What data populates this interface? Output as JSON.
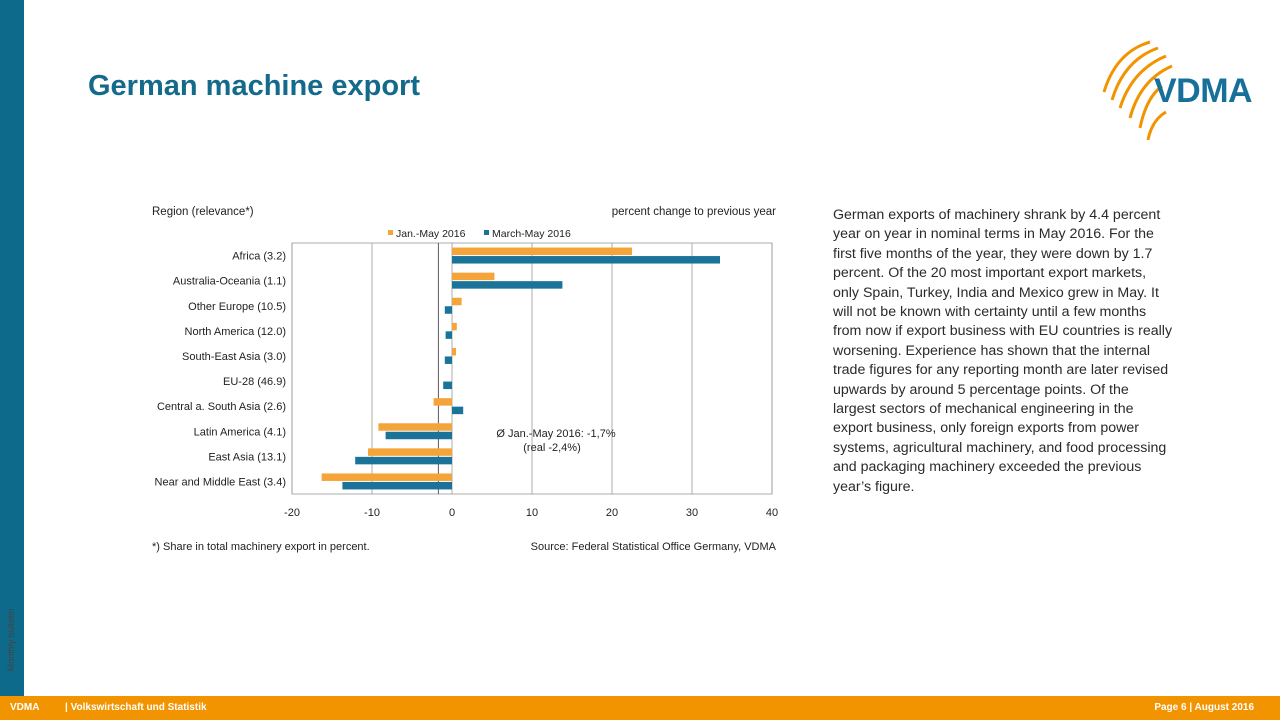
{
  "slide": {
    "title": "German machine export",
    "side_label": "Monthly bulletin",
    "logo_text": "VDMA",
    "body_text": "German exports of machinery shrank by 4.4 percent year on year in nominal terms in May 2016. For the first five months of the year, they were down by 1.7 percent. Of the 20 most important export markets, only Spain, Turkey, India and Mexico grew in May. It will not be known with certainty until a few months from now if export business with EU countries is really worsening. Experience has shown that the internal trade figures for any reporting month are later revised upwards by around 5 percentage points. Of the largest sectors of mechanical engineering in the export business, only foreign exports from power systems, agricultural machinery, and food processing and packaging machinery exceeded the previous year’s figure."
  },
  "footer": {
    "brand": "VDMA",
    "dept": "| Volkswirtschaft und Statistik",
    "page": "Page 6 | August 2016"
  },
  "colors": {
    "accent_blue": "#1b7399",
    "accent_orange": "#f5a43a",
    "footer_orange": "#f29300",
    "sidebar_blue": "#0e6a8a"
  },
  "chart_data": {
    "type": "bar",
    "orientation": "horizontal",
    "left_header": "Region (relevance*)",
    "right_header": "percent change to previous year",
    "categories": [
      "Africa  (3.2)",
      "Australia-Oceania  (1.1)",
      "Other Europe  (10.5)",
      "North America  (12.0)",
      "South-East Asia  (3.0)",
      "EU-28  (46.9)",
      "Central a. South Asia  (2.6)",
      "Latin America  (4.1)",
      "East Asia  (13.1)",
      "Near and Middle East  (3.4)"
    ],
    "series": [
      {
        "name": "Jan.-May 2016",
        "color": "#f5a43a",
        "values": [
          22.5,
          5.3,
          1.2,
          0.6,
          0.5,
          0,
          -2.3,
          -9.2,
          -10.5,
          -16.3
        ]
      },
      {
        "name": "March-May 2016",
        "color": "#1b7399",
        "values": [
          33.5,
          13.8,
          -0.9,
          -0.8,
          -0.9,
          -1.1,
          1.4,
          -8.3,
          -12.1,
          -13.7
        ]
      }
    ],
    "xlim": [
      -20,
      40
    ],
    "xticks": [
      -20,
      -10,
      0,
      10,
      20,
      30,
      40
    ],
    "average_line": -1.7,
    "annotation": [
      "Ø Jan.-May 2016: -1,7%",
      "(real -2,4%)"
    ],
    "footnote": "*) Share in total machinery export in percent.",
    "source": "Source: Federal Statistical Office Germany, VDMA",
    "grid": true,
    "legend": "top"
  }
}
